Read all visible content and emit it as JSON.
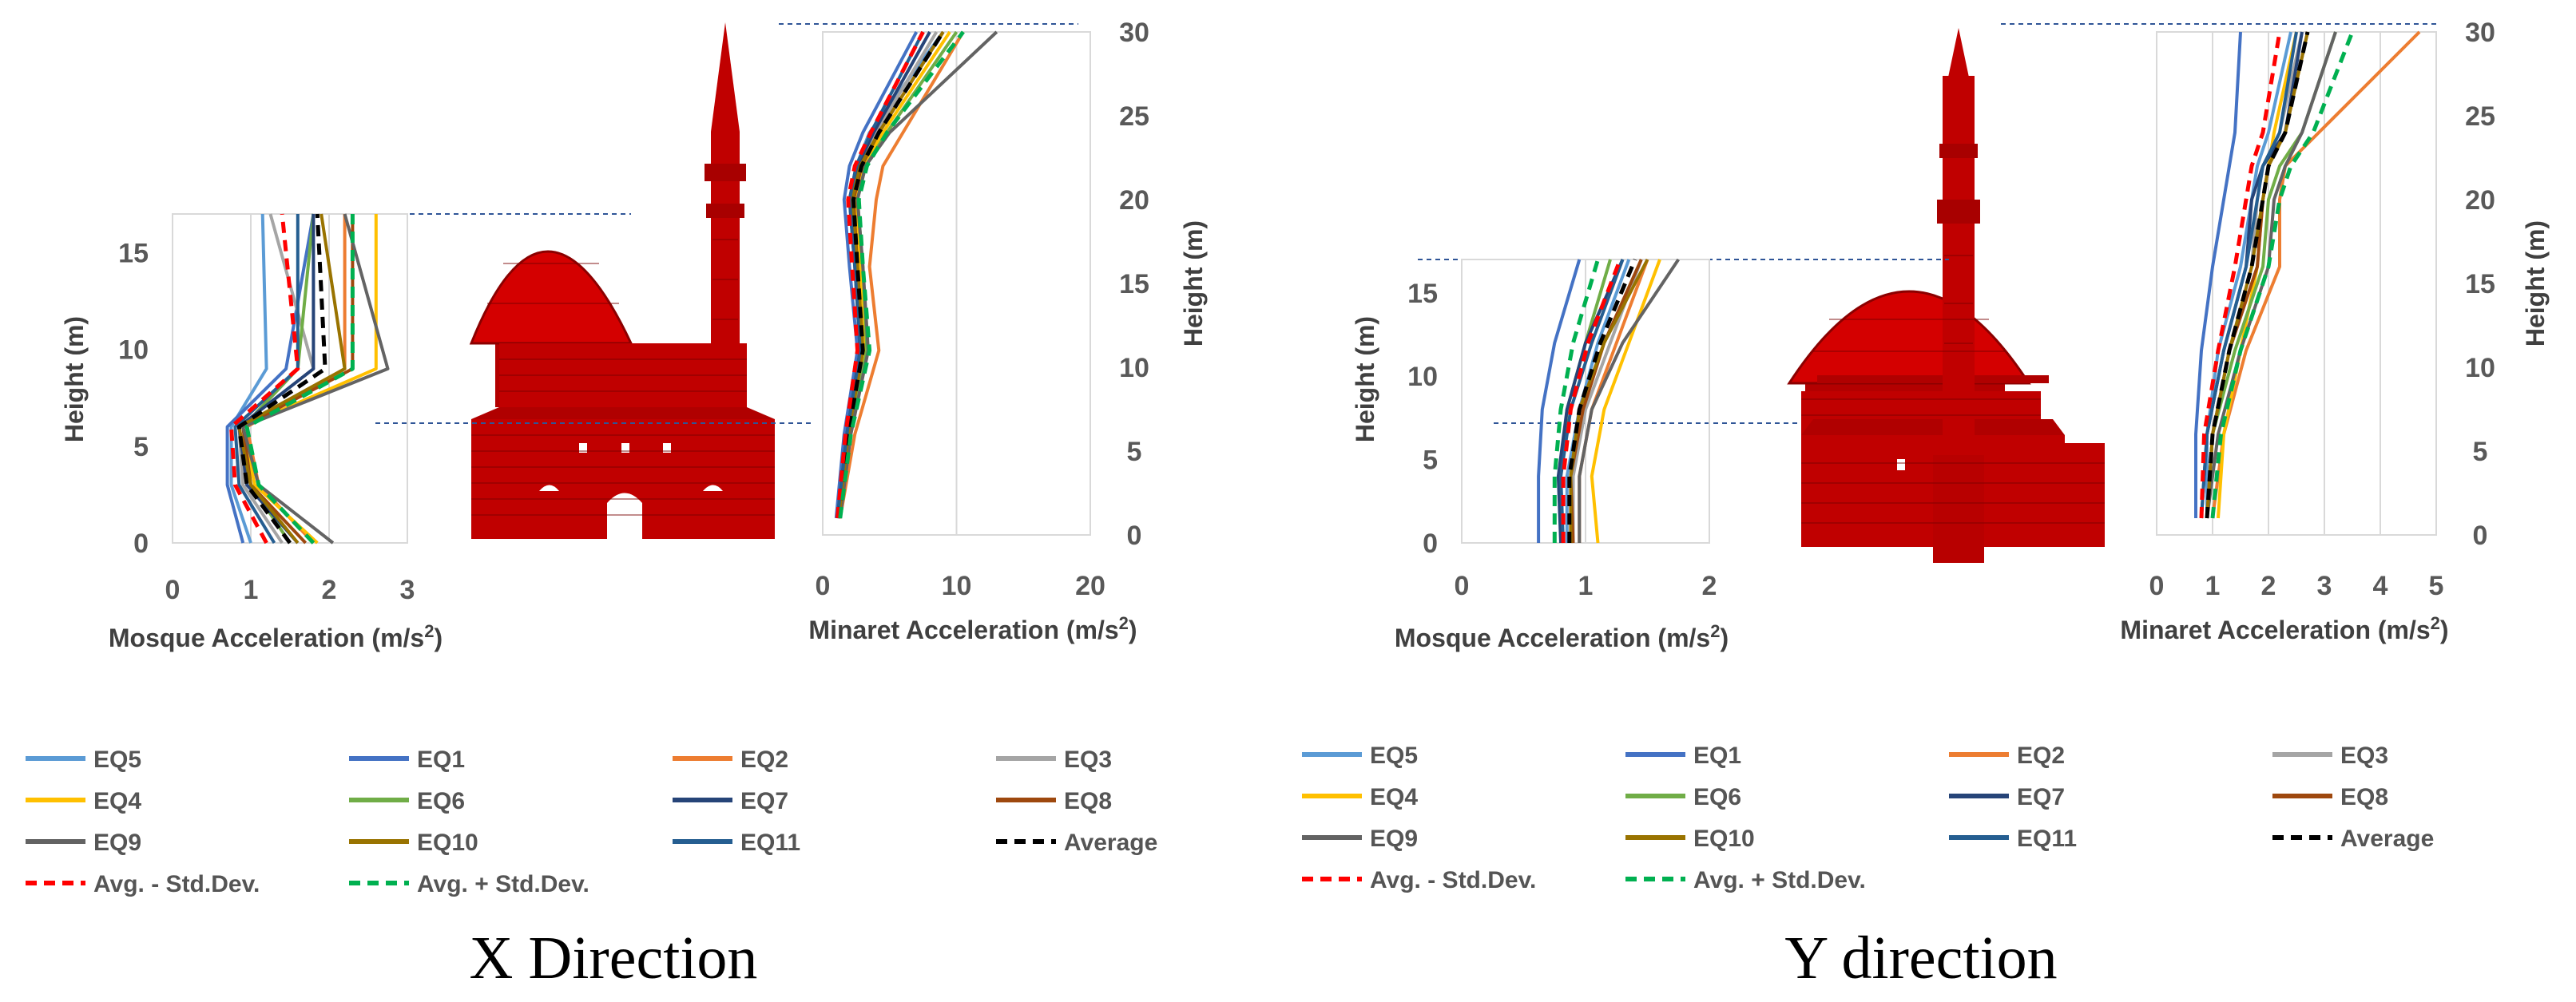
{
  "colors": {
    "EQ5": "#5b9bd5",
    "EQ1": "#4472c4",
    "EQ2": "#ed7d31",
    "EQ3": "#a5a5a5",
    "EQ4": "#ffc000",
    "EQ6": "#70ad47",
    "EQ7": "#264478",
    "EQ8": "#9e480e",
    "EQ9": "#636363",
    "EQ10": "#997300",
    "EQ11": "#255e91",
    "Average": "#000000",
    "Avg. - Std.Dev.": "#ff0000",
    "Avg. + Std.Dev.": "#00b050",
    "building": "#c00000",
    "grid": "#d9d9d9",
    "guide": "#2f5597"
  },
  "legend": {
    "rows": [
      [
        {
          "label": "EQ5",
          "key": "EQ5"
        },
        {
          "label": "EQ1",
          "key": "EQ1"
        },
        {
          "label": "EQ2",
          "key": "EQ2"
        },
        {
          "label": "EQ3",
          "key": "EQ3"
        }
      ],
      [
        {
          "label": "EQ4",
          "key": "EQ4"
        },
        {
          "label": "EQ6",
          "key": "EQ6"
        },
        {
          "label": "EQ7",
          "key": "EQ7"
        },
        {
          "label": "EQ8",
          "key": "EQ8"
        }
      ],
      [
        {
          "label": "EQ9",
          "key": "EQ9"
        },
        {
          "label": "EQ10",
          "key": "EQ10"
        },
        {
          "label": "EQ11",
          "key": "EQ11"
        },
        {
          "label": "Average",
          "key": "Average",
          "dashed": true
        }
      ],
      [
        {
          "label": "Avg. - Std.Dev.",
          "key": "Avg. - Std.Dev.",
          "dashed": true
        },
        {
          "label": "Avg. + Std.Dev.",
          "key": "Avg. + Std.Dev.",
          "dashed": true
        }
      ]
    ]
  },
  "captions": {
    "x": "X Direction",
    "y": "Y direction"
  },
  "chart_data": [
    {
      "id": "x-mosque",
      "type": "line",
      "direction": "X",
      "xlabel": "Mosque Acceleration (m/s",
      "xlabel_sup": "2",
      "xlabel_end": ")",
      "ylabel": "Height (m)",
      "xlim": [
        0,
        3
      ],
      "ylim": [
        0,
        17
      ],
      "xticks": [
        "0",
        "1",
        "2",
        "3"
      ],
      "yticks": [
        "0",
        "5",
        "10",
        "15"
      ],
      "y": [
        0,
        3,
        6,
        9,
        17
      ],
      "series": [
        {
          "name": "EQ5",
          "values": [
            1.0,
            0.75,
            0.75,
            1.2,
            1.15
          ]
        },
        {
          "name": "EQ1",
          "values": [
            0.9,
            0.7,
            0.7,
            1.45,
            1.8
          ]
        },
        {
          "name": "EQ2",
          "values": [
            1.8,
            1.1,
            0.95,
            2.2,
            2.2
          ]
        },
        {
          "name": "EQ3",
          "values": [
            1.4,
            0.9,
            0.85,
            1.8,
            1.25
          ]
        },
        {
          "name": "EQ4",
          "values": [
            1.85,
            1.05,
            0.9,
            2.6,
            2.6
          ]
        },
        {
          "name": "EQ6",
          "values": [
            1.5,
            1.0,
            0.9,
            1.6,
            1.8
          ]
        },
        {
          "name": "EQ7",
          "values": [
            1.6,
            0.95,
            0.85,
            1.8,
            1.8
          ]
        },
        {
          "name": "EQ8",
          "values": [
            1.7,
            1.0,
            0.9,
            2.3,
            2.3
          ]
        },
        {
          "name": "EQ9",
          "values": [
            2.05,
            1.1,
            0.9,
            2.75,
            2.2
          ]
        },
        {
          "name": "EQ10",
          "values": [
            1.6,
            1.0,
            0.85,
            2.2,
            1.9
          ]
        },
        {
          "name": "EQ11",
          "values": [
            1.3,
            0.85,
            0.8,
            1.6,
            1.6
          ]
        },
        {
          "name": "Average",
          "values": [
            1.5,
            0.95,
            0.85,
            1.95,
            1.85
          ],
          "dashed": true
        },
        {
          "name": "Avg. - Std.Dev.",
          "values": [
            1.2,
            0.8,
            0.75,
            1.6,
            1.4
          ],
          "dashed": true
        },
        {
          "name": "Avg. + Std.Dev.",
          "values": [
            1.8,
            1.1,
            0.95,
            2.3,
            2.3
          ],
          "dashed": true
        }
      ]
    },
    {
      "id": "x-minaret",
      "type": "line",
      "direction": "X",
      "xlabel": "Minaret Acceleration (m/s",
      "xlabel_sup": "2",
      "xlabel_end": ")",
      "ylabel": "Height (m)",
      "xlim": [
        0,
        20
      ],
      "ylim": [
        0,
        30
      ],
      "xticks": [
        "0",
        "10",
        "20"
      ],
      "yticks": [
        "0",
        "5",
        "10",
        "15",
        "20",
        "25",
        "30"
      ],
      "y": [
        1,
        6,
        11,
        16,
        20,
        22,
        24,
        30
      ],
      "series": [
        {
          "name": "EQ5",
          "values": [
            1.2,
            1.8,
            3.0,
            2.5,
            2.0,
            2.5,
            3.5,
            9.0
          ]
        },
        {
          "name": "EQ1",
          "values": [
            1.0,
            1.6,
            2.6,
            2.0,
            1.6,
            2.0,
            3.0,
            7.0
          ]
        },
        {
          "name": "EQ2",
          "values": [
            1.3,
            2.4,
            4.2,
            3.5,
            4.0,
            4.5,
            6.0,
            10.5
          ]
        },
        {
          "name": "EQ3",
          "values": [
            1.2,
            1.9,
            3.0,
            2.5,
            2.2,
            2.8,
            4.0,
            8.5
          ]
        },
        {
          "name": "EQ4",
          "values": [
            1.2,
            2.0,
            3.2,
            2.8,
            2.5,
            3.0,
            4.5,
            9.5
          ]
        },
        {
          "name": "EQ6",
          "values": [
            1.2,
            2.0,
            3.3,
            3.0,
            2.6,
            3.2,
            4.8,
            10.0
          ]
        },
        {
          "name": "EQ7",
          "values": [
            1.1,
            1.8,
            2.8,
            2.4,
            2.0,
            2.6,
            3.8,
            8.0
          ]
        },
        {
          "name": "EQ8",
          "values": [
            1.2,
            1.9,
            3.0,
            2.6,
            2.3,
            2.9,
            4.2,
            9.0
          ]
        },
        {
          "name": "EQ9",
          "values": [
            1.3,
            2.1,
            3.4,
            3.0,
            2.6,
            3.2,
            5.0,
            13.0
          ]
        },
        {
          "name": "EQ10",
          "values": [
            1.2,
            1.9,
            3.0,
            2.6,
            2.2,
            2.8,
            4.2,
            9.0
          ]
        },
        {
          "name": "EQ11",
          "values": [
            1.1,
            1.8,
            2.8,
            2.4,
            2.0,
            2.5,
            3.6,
            7.5
          ]
        },
        {
          "name": "Average",
          "values": [
            1.2,
            1.9,
            3.0,
            2.6,
            2.3,
            2.9,
            4.2,
            9.0
          ],
          "dashed": true
        },
        {
          "name": "Avg. - Std.Dev.",
          "values": [
            1.1,
            1.7,
            2.6,
            2.2,
            1.9,
            2.4,
            3.6,
            7.5
          ],
          "dashed": true
        },
        {
          "name": "Avg. + Std.Dev.",
          "values": [
            1.3,
            2.1,
            3.5,
            3.0,
            2.7,
            3.3,
            4.8,
            10.5
          ],
          "dashed": true
        }
      ]
    },
    {
      "id": "y-mosque",
      "type": "line",
      "direction": "Y",
      "xlabel": "Mosque Acceleration (m/s",
      "xlabel_sup": "2",
      "xlabel_end": ")",
      "ylabel": "Height (m)",
      "xlim": [
        0,
        2
      ],
      "ylim": [
        0,
        17
      ],
      "xticks": [
        "0",
        "1",
        "2"
      ],
      "yticks": [
        "0",
        "5",
        "10",
        "15"
      ],
      "y": [
        0,
        4,
        8,
        12,
        17
      ],
      "series": [
        {
          "name": "EQ5",
          "values": [
            0.85,
            0.85,
            0.95,
            1.1,
            1.35
          ]
        },
        {
          "name": "EQ1",
          "values": [
            0.62,
            0.62,
            0.65,
            0.75,
            0.95
          ]
        },
        {
          "name": "EQ2",
          "values": [
            0.95,
            0.95,
            1.05,
            1.25,
            1.5
          ]
        },
        {
          "name": "EQ3",
          "values": [
            0.9,
            0.9,
            1.0,
            1.2,
            1.45
          ]
        },
        {
          "name": "EQ4",
          "values": [
            1.1,
            1.05,
            1.15,
            1.35,
            1.6
          ]
        },
        {
          "name": "EQ6",
          "values": [
            0.8,
            0.8,
            0.85,
            1.0,
            1.2
          ]
        },
        {
          "name": "EQ7",
          "values": [
            0.8,
            0.78,
            0.85,
            1.0,
            1.3
          ]
        },
        {
          "name": "EQ8",
          "values": [
            0.9,
            0.88,
            0.98,
            1.15,
            1.45
          ]
        },
        {
          "name": "EQ9",
          "values": [
            0.95,
            0.95,
            1.05,
            1.3,
            1.75
          ]
        },
        {
          "name": "EQ10",
          "values": [
            0.88,
            0.88,
            0.95,
            1.15,
            1.5
          ]
        },
        {
          "name": "EQ11",
          "values": [
            0.82,
            0.8,
            0.88,
            1.05,
            1.3
          ]
        },
        {
          "name": "Average",
          "values": [
            0.87,
            0.87,
            0.95,
            1.12,
            1.4
          ],
          "dashed": true
        },
        {
          "name": "Avg. - Std.Dev.",
          "values": [
            0.82,
            0.82,
            0.88,
            1.02,
            1.28
          ],
          "dashed": true
        },
        {
          "name": "Avg. + Std.Dev.",
          "values": [
            0.75,
            0.75,
            0.8,
            0.9,
            1.1
          ],
          "dashed": true
        }
      ]
    },
    {
      "id": "y-minaret",
      "type": "line",
      "direction": "Y",
      "xlabel": "Minaret Acceleration (m/s",
      "xlabel_sup": "2",
      "xlabel_end": ")",
      "ylabel": "Height (m)",
      "xlim": [
        0,
        5
      ],
      "ylim": [
        0,
        30
      ],
      "xticks": [
        "0",
        "1",
        "2",
        "3",
        "4",
        "5"
      ],
      "yticks": [
        "0",
        "5",
        "10",
        "15",
        "20",
        "25",
        "30"
      ],
      "y": [
        1,
        6,
        11,
        16,
        20,
        22,
        24,
        30
      ],
      "series": [
        {
          "name": "EQ5",
          "values": [
            0.9,
            0.9,
            1.1,
            1.5,
            1.7,
            1.8,
            2.0,
            2.4
          ]
        },
        {
          "name": "EQ1",
          "values": [
            0.7,
            0.7,
            0.8,
            1.0,
            1.2,
            1.3,
            1.4,
            1.5
          ]
        },
        {
          "name": "EQ2",
          "values": [
            1.0,
            1.2,
            1.6,
            2.2,
            2.2,
            2.3,
            2.9,
            4.7
          ]
        },
        {
          "name": "EQ3",
          "values": [
            0.9,
            1.0,
            1.3,
            1.7,
            1.8,
            1.9,
            2.2,
            2.6
          ]
        },
        {
          "name": "EQ4",
          "values": [
            1.1,
            1.2,
            1.5,
            1.8,
            1.9,
            2.0,
            2.1,
            2.5
          ]
        },
        {
          "name": "EQ6",
          "values": [
            0.9,
            1.0,
            1.4,
            1.9,
            2.0,
            2.2,
            2.6,
            3.2
          ]
        },
        {
          "name": "EQ7",
          "values": [
            0.8,
            0.9,
            1.2,
            1.6,
            1.7,
            1.9,
            2.3,
            2.6
          ]
        },
        {
          "name": "EQ8",
          "values": [
            0.9,
            1.0,
            1.3,
            1.8,
            1.9,
            2.0,
            2.3,
            2.7
          ]
        },
        {
          "name": "EQ9",
          "values": [
            0.9,
            1.1,
            1.5,
            2.0,
            2.1,
            2.3,
            2.6,
            3.2
          ]
        },
        {
          "name": "EQ10",
          "values": [
            0.9,
            1.0,
            1.3,
            1.7,
            1.9,
            2.0,
            2.3,
            2.7
          ]
        },
        {
          "name": "EQ11",
          "values": [
            0.8,
            0.9,
            1.2,
            1.6,
            1.8,
            1.9,
            2.2,
            2.5
          ]
        },
        {
          "name": "Average",
          "values": [
            0.9,
            1.0,
            1.3,
            1.7,
            1.9,
            2.0,
            2.3,
            2.7
          ],
          "dashed": true
        },
        {
          "name": "Avg. - Std.Dev.",
          "values": [
            0.8,
            0.85,
            1.1,
            1.4,
            1.6,
            1.7,
            1.9,
            2.2
          ],
          "dashed": true
        },
        {
          "name": "Avg. + Std.Dev.",
          "values": [
            1.0,
            1.15,
            1.5,
            2.0,
            2.2,
            2.4,
            2.8,
            3.5
          ],
          "dashed": true
        }
      ]
    }
  ]
}
